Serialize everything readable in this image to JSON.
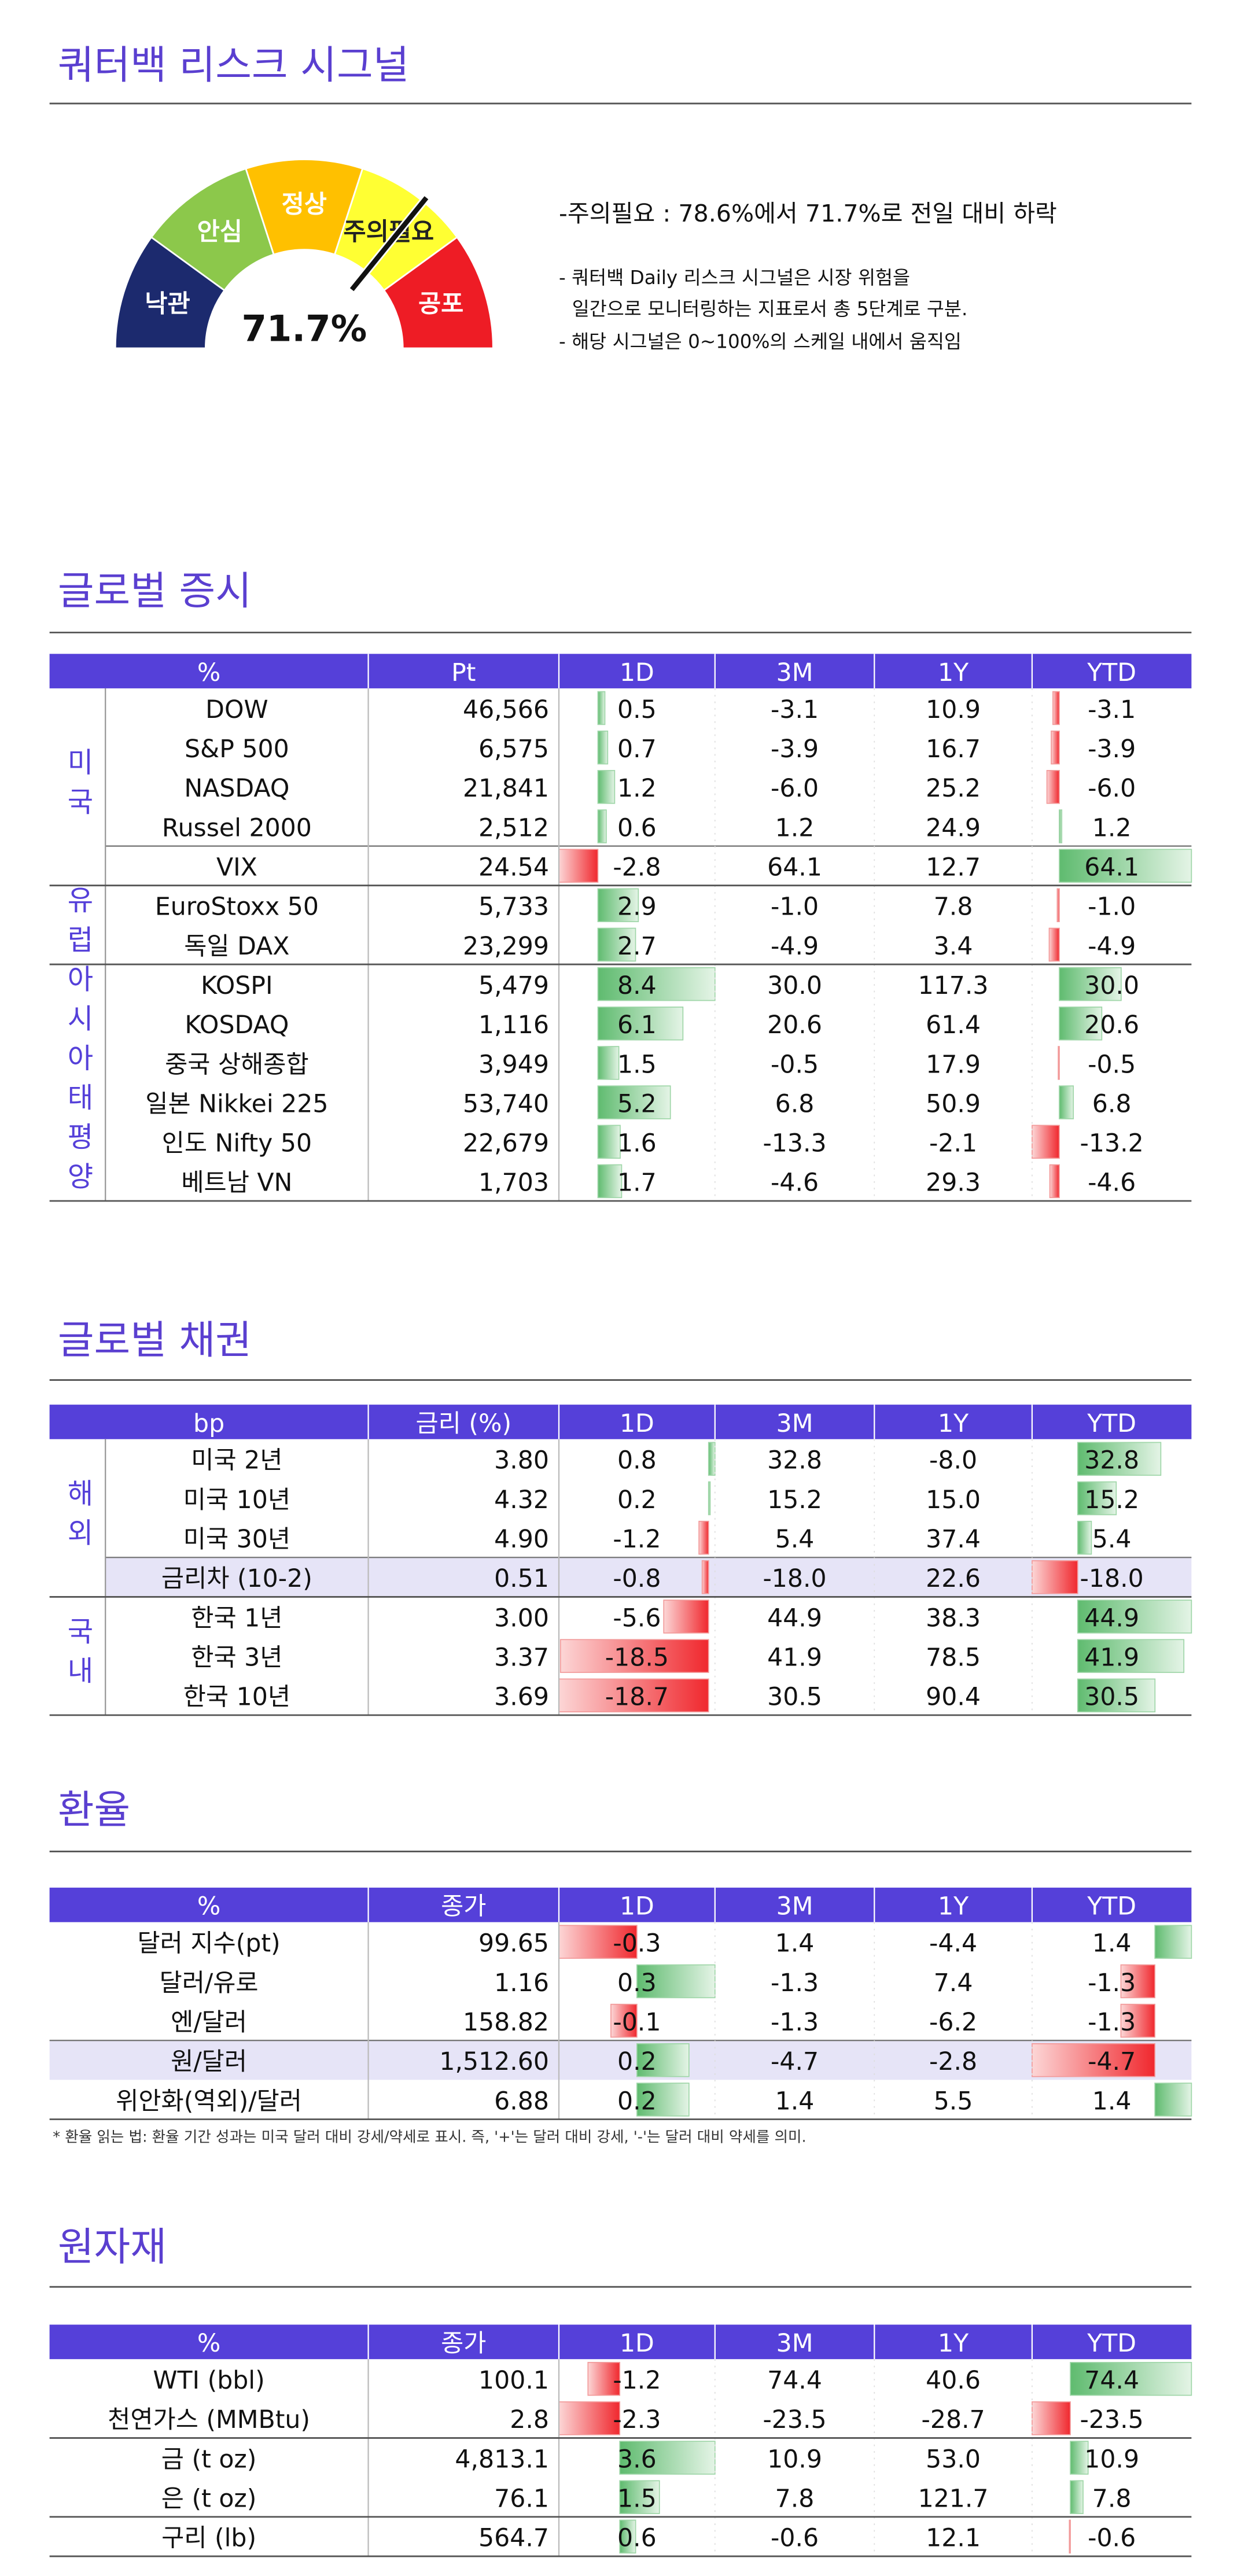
{
  "header": {
    "title": "쿼터백 리스크 시그널"
  },
  "signal": {
    "value": 71.7,
    "value_label": "71.7%",
    "range": [
      0,
      100
    ],
    "levels": [
      {
        "label": "낙관",
        "color": "#1c2a6e",
        "text_color": "#ffffff"
      },
      {
        "label": "안심",
        "color": "#8cc84b",
        "text_color": "#ffffff"
      },
      {
        "label": "정상",
        "color": "#ffc000",
        "text_color": "#ffffff"
      },
      {
        "label": "주의필요",
        "color": "#ffff33",
        "text_color": "#222222"
      },
      {
        "label": "공포",
        "color": "#ee1c25",
        "text_color": "#ffffff"
      }
    ],
    "summary": "-주의필요 : 78.6%에서 71.7%로 전일 대비 하락",
    "notes": [
      "- 쿼터백 Daily 리스크 시그널은 시장 위험을",
      "일간으로 모니터링하는 지표로서 총 5단계로 구분.",
      "- 해당 시그널은 0~100%의 스케일 내에서 움직임"
    ]
  },
  "tables": [
    {
      "title": "글로벌 증시",
      "columns": [
        "%",
        "Pt",
        "1D",
        "3M",
        "1Y",
        "YTD"
      ],
      "bar_columns": [
        2,
        5
      ],
      "groups": [
        {
          "label": "미국",
          "rows": [
            [
              "DOW",
              "46,566",
              "0.5",
              "-3.1",
              "10.9",
              "-3.1"
            ],
            [
              "S&P 500",
              "6,575",
              "0.7",
              "-3.9",
              "16.7",
              "-3.9"
            ],
            [
              "NASDAQ",
              "21,841",
              "1.2",
              "-6.0",
              "25.2",
              "-6.0"
            ],
            [
              "Russel 2000",
              "2,512",
              "0.6",
              "1.2",
              "24.9",
              "1.2"
            ],
            [
              "VIX",
              "24.54",
              "-2.8",
              "64.1",
              "12.7",
              "64.1"
            ]
          ]
        },
        {
          "label": "유럽",
          "rows": [
            [
              "EuroStoxx 50",
              "5,733",
              "2.9",
              "-1.0",
              "7.8",
              "-1.0"
            ],
            [
              "독일 DAX",
              "23,299",
              "2.7",
              "-4.9",
              "3.4",
              "-4.9"
            ]
          ]
        },
        {
          "label": "아시아태평양",
          "rows": [
            [
              "KOSPI",
              "5,479",
              "8.4",
              "30.0",
              "117.3",
              "30.0"
            ],
            [
              "KOSDAQ",
              "1,116",
              "6.1",
              "20.6",
              "61.4",
              "20.6"
            ],
            [
              "중국 상해종합",
              "3,949",
              "1.5",
              "-0.5",
              "17.9",
              "-0.5"
            ],
            [
              "일본 Nikkei 225",
              "53,740",
              "5.2",
              "6.8",
              "50.9",
              "6.8"
            ],
            [
              "인도 Nifty 50",
              "22,679",
              "1.6",
              "-13.3",
              "-2.1",
              "-13.2"
            ],
            [
              "베트남 VN",
              "1,703",
              "1.7",
              "-4.6",
              "29.3",
              "-4.6"
            ]
          ]
        }
      ]
    },
    {
      "title": "글로벌 채권",
      "columns": [
        "bp",
        "금리 (%)",
        "1D",
        "3M",
        "1Y",
        "YTD"
      ],
      "bar_columns": [
        2,
        5
      ],
      "highlighted_row": 3,
      "groups": [
        {
          "label": "해외",
          "rows": [
            [
              "미국 2년",
              "3.80",
              "0.8",
              "32.8",
              "-8.0",
              "32.8"
            ],
            [
              "미국 10년",
              "4.32",
              "0.2",
              "15.2",
              "15.0",
              "15.2"
            ],
            [
              "미국 30년",
              "4.90",
              "-1.2",
              "5.4",
              "37.4",
              "5.4"
            ],
            [
              "금리차 (10-2)",
              "0.51",
              "-0.8",
              "-18.0",
              "22.6",
              "-18.0"
            ]
          ]
        },
        {
          "label": "국내",
          "rows": [
            [
              "한국 1년",
              "3.00",
              "-5.6",
              "44.9",
              "38.3",
              "44.9"
            ],
            [
              "한국 3년",
              "3.37",
              "-18.5",
              "41.9",
              "78.5",
              "41.9"
            ],
            [
              "한국 10년",
              "3.69",
              "-18.7",
              "30.5",
              "90.4",
              "30.5"
            ]
          ]
        }
      ]
    },
    {
      "title": "환율",
      "columns": [
        "%",
        "종가",
        "1D",
        "3M",
        "1Y",
        "YTD"
      ],
      "bar_columns": [
        2,
        5
      ],
      "highlighted_row": 3,
      "groups": [
        {
          "rows": [
            [
              "달러 지수(pt)",
              "99.65",
              "-0.3",
              "1.4",
              "-4.4",
              "1.4"
            ],
            [
              "달러/유로",
              "1.16",
              "0.3",
              "-1.3",
              "7.4",
              "-1.3"
            ],
            [
              "엔/달러",
              "158.82",
              "-0.1",
              "-1.3",
              "-6.2",
              "-1.3"
            ],
            [
              "원/달러",
              "1,512.60",
              "0.2",
              "-4.7",
              "-2.8",
              "-4.7"
            ],
            [
              "위안화(역외)/달러",
              "6.88",
              "0.2",
              "1.4",
              "5.5",
              "1.4"
            ]
          ]
        }
      ],
      "note": "* 환율 읽는 법: 환율 기간 성과는 미국 달러 대비 강세/약세로 표시. 즉, '+'는 달러 대비 강세, '-'는 달러 대비 약세를 의미."
    },
    {
      "title": "원자재",
      "columns": [
        "%",
        "종가",
        "1D",
        "3M",
        "1Y",
        "YTD"
      ],
      "bar_columns": [
        2,
        5
      ],
      "groups": [
        {
          "rows": [
            [
              "WTI (bbl)",
              "100.1",
              "-1.2",
              "74.4",
              "40.6",
              "74.4"
            ],
            [
              "천연가스 (MMBtu)",
              "2.8",
              "-2.3",
              "-23.5",
              "-28.7",
              "-23.5"
            ]
          ]
        },
        {
          "rows": [
            [
              "금 (t oz)",
              "4,813.1",
              "3.6",
              "10.9",
              "53.0",
              "10.9"
            ],
            [
              "은 (t oz)",
              "76.1",
              "1.5",
              "7.8",
              "121.7",
              "7.8"
            ]
          ]
        },
        {
          "rows": [
            [
              "구리 (lb)",
              "564.7",
              "0.6",
              "-0.6",
              "12.1",
              "-0.6"
            ]
          ]
        }
      ]
    }
  ]
}
